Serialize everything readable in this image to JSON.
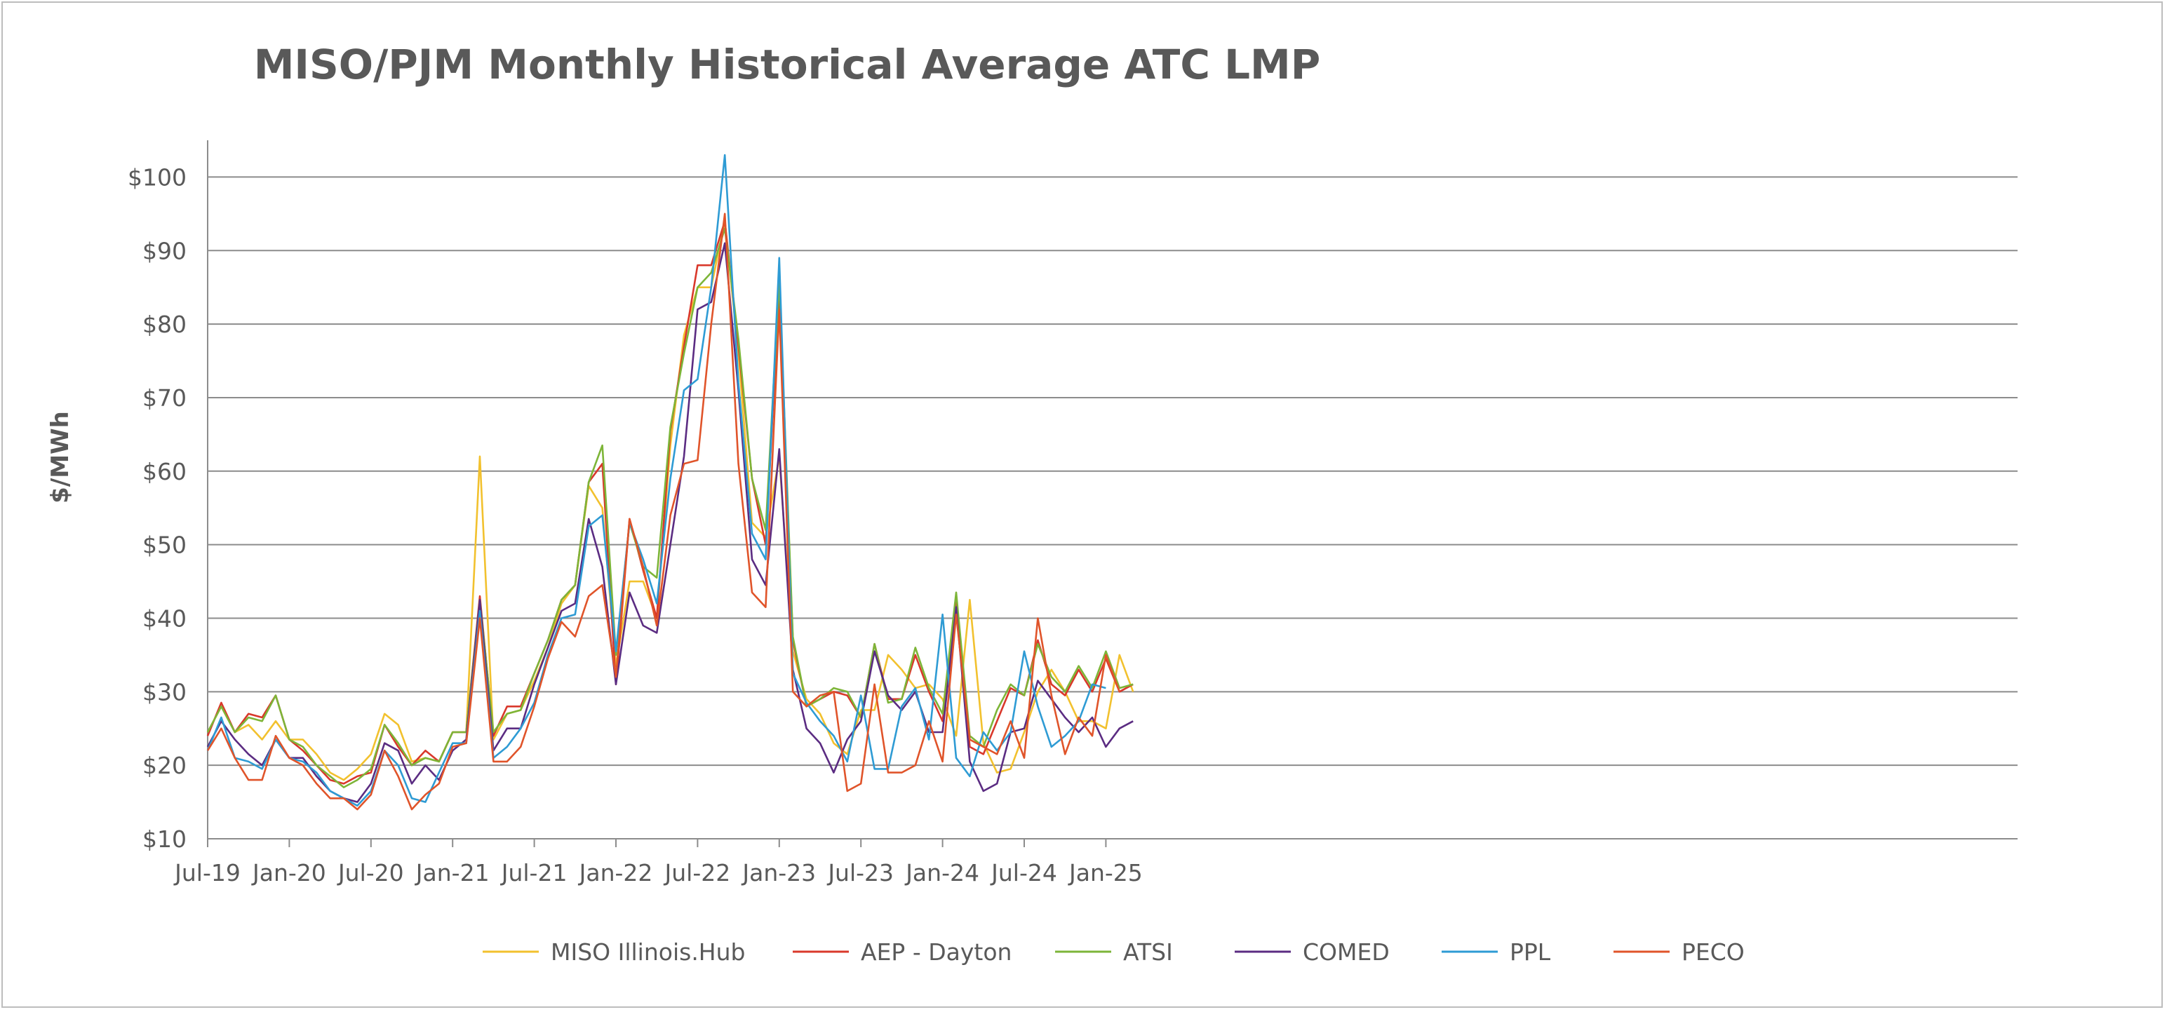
{
  "chart_data": {
    "type": "line",
    "title": "MISO/PJM Monthly Historical Average ATC LMP",
    "xlabel": "",
    "ylabel": "$/MWh",
    "ylim": [
      10,
      105
    ],
    "yticks": [
      10,
      20,
      30,
      40,
      50,
      60,
      70,
      80,
      90,
      100
    ],
    "ytick_labels": [
      "$10",
      "$20",
      "$30",
      "$40",
      "$50",
      "$60",
      "$70",
      "$80",
      "$90",
      "$100"
    ],
    "x_start": "Jul-19",
    "x_end": "Jan-25",
    "xtick_labels": [
      "Jul-19",
      "Jan-20",
      "Jul-20",
      "Jan-21",
      "Jul-21",
      "Jan-22",
      "Jul-22",
      "Jan-23",
      "Jul-23",
      "Jan-24",
      "Jul-24",
      "Jan-25"
    ],
    "grid": "horizontal",
    "legend_position": "bottom",
    "series": [
      {
        "name": "MISO Illinois.Hub",
        "color": "#F2C12E",
        "values": [
          24.5,
          28.0,
          24.5,
          25.5,
          23.5,
          26.0,
          23.5,
          23.5,
          21.5,
          19.0,
          18.0,
          19.5,
          21.5,
          27.0,
          25.5,
          20.5,
          21.0,
          20.5,
          24.5,
          24.5,
          62.0,
          23.5,
          27.0,
          27.5,
          31.5,
          36.0,
          42.0,
          44.5,
          58.0,
          55.0,
          33.5,
          45.0,
          45.0,
          40.0,
          63.5,
          78.5,
          85.0,
          85.0,
          94.0,
          76.0,
          53.0,
          51.0,
          62.0,
          35.5,
          29.0,
          27.0,
          23.0,
          21.5,
          27.5,
          27.5,
          35.0,
          33.0,
          30.5,
          31.0,
          29.0,
          24.0,
          42.5,
          23.0,
          19.0,
          19.5,
          24.5,
          30.0,
          33.0,
          30.0,
          26.0,
          26.0,
          25.0,
          35.0,
          30.0
        ]
      },
      {
        "name": "AEP - Dayton",
        "color": "#D9382B",
        "values": [
          24.0,
          28.5,
          24.5,
          27.0,
          26.5,
          29.5,
          23.5,
          22.0,
          20.0,
          18.0,
          17.5,
          18.5,
          19.0,
          25.5,
          22.5,
          20.0,
          22.0,
          20.5,
          24.5,
          24.5,
          43.0,
          24.0,
          28.0,
          28.0,
          32.5,
          37.0,
          42.5,
          44.5,
          58.5,
          61.0,
          31.0,
          53.5,
          46.5,
          40.0,
          65.5,
          77.0,
          88.0,
          88.0,
          94.0,
          77.0,
          59.0,
          50.0,
          84.5,
          37.0,
          28.0,
          29.0,
          30.0,
          29.5,
          26.5,
          36.5,
          29.0,
          29.0,
          35.0,
          30.0,
          26.0,
          42.5,
          22.5,
          21.5,
          26.0,
          30.5,
          29.5,
          37.0,
          31.0,
          29.5,
          33.0,
          30.0,
          34.5,
          30.0,
          31.0
        ]
      },
      {
        "name": "ATSI",
        "color": "#7DB538",
        "values": [
          24.5,
          28.0,
          24.5,
          26.5,
          26.0,
          29.5,
          23.5,
          22.5,
          20.0,
          18.5,
          17.0,
          18.0,
          19.5,
          25.5,
          23.0,
          20.0,
          21.0,
          20.5,
          24.5,
          24.5,
          42.5,
          24.5,
          27.0,
          27.5,
          32.5,
          37.0,
          42.5,
          44.5,
          58.5,
          63.5,
          35.0,
          53.0,
          47.0,
          45.5,
          66.0,
          76.0,
          85.0,
          87.0,
          93.0,
          78.0,
          59.0,
          52.0,
          86.0,
          37.5,
          28.0,
          29.0,
          30.5,
          30.0,
          26.5,
          36.5,
          28.5,
          29.0,
          36.0,
          30.5,
          27.0,
          43.5,
          24.0,
          22.5,
          27.5,
          31.0,
          29.5,
          36.5,
          32.0,
          30.0,
          33.5,
          30.5,
          35.5,
          30.5,
          31.0
        ]
      },
      {
        "name": "COMED",
        "color": "#5B2C82",
        "values": [
          22.5,
          26.0,
          23.5,
          21.5,
          20.0,
          23.5,
          21.0,
          21.0,
          18.5,
          16.5,
          15.5,
          15.0,
          17.5,
          23.0,
          22.0,
          17.5,
          20.0,
          18.0,
          22.0,
          23.5,
          42.5,
          22.0,
          25.0,
          25.0,
          31.0,
          36.0,
          41.0,
          42.0,
          53.5,
          47.0,
          31.0,
          43.5,
          39.0,
          38.0,
          50.0,
          62.0,
          82.0,
          83.0,
          91.0,
          71.0,
          48.0,
          44.5,
          63.0,
          33.0,
          25.0,
          23.0,
          19.0,
          23.5,
          26.0,
          35.5,
          29.5,
          27.5,
          30.0,
          24.5,
          24.5,
          41.5,
          20.5,
          16.5,
          17.5,
          24.5,
          25.0,
          31.5,
          29.0,
          26.5,
          24.5,
          26.5,
          22.5,
          25.0,
          26.0
        ]
      },
      {
        "name": "PPL",
        "color": "#2E9BD4",
        "values": [
          22.0,
          26.5,
          21.0,
          20.5,
          19.5,
          23.5,
          21.0,
          20.5,
          19.0,
          16.5,
          15.5,
          14.5,
          16.5,
          22.0,
          20.0,
          15.5,
          15.0,
          19.0,
          23.0,
          23.0,
          41.0,
          21.0,
          22.5,
          25.0,
          28.5,
          35.0,
          40.0,
          40.5,
          52.5,
          54.0,
          35.5,
          53.0,
          48.0,
          42.0,
          59.0,
          71.0,
          72.5,
          85.0,
          103.0,
          72.0,
          51.5,
          48.0,
          89.0,
          32.5,
          28.5,
          26.0,
          24.0,
          20.5,
          29.5,
          19.5,
          19.5,
          28.0,
          30.5,
          23.5,
          40.5,
          21.0,
          18.5,
          24.5,
          22.0,
          24.5,
          35.5,
          28.0,
          22.5,
          24.0,
          26.0,
          31.0,
          30.5
        ]
      },
      {
        "name": "PECO",
        "color": "#E0542A",
        "values": [
          22.0,
          25.0,
          21.0,
          18.0,
          18.0,
          24.0,
          21.0,
          20.0,
          17.5,
          15.5,
          15.5,
          14.0,
          16.0,
          22.0,
          18.5,
          14.0,
          16.0,
          17.5,
          22.5,
          23.0,
          40.0,
          20.5,
          20.5,
          22.5,
          28.0,
          34.5,
          39.5,
          37.5,
          43.0,
          44.5,
          32.0,
          53.5,
          47.0,
          39.0,
          54.0,
          61.0,
          61.5,
          80.0,
          95.0,
          61.0,
          43.5,
          41.5,
          82.0,
          30.0,
          28.0,
          29.5,
          30.0,
          16.5,
          17.5,
          31.0,
          19.0,
          19.0,
          20.0,
          26.0,
          20.5,
          40.5,
          23.5,
          22.5,
          21.5,
          26.0,
          21.0,
          40.0,
          29.5,
          21.5,
          26.5,
          24.0,
          35.0,
          30.0
        ]
      }
    ]
  }
}
